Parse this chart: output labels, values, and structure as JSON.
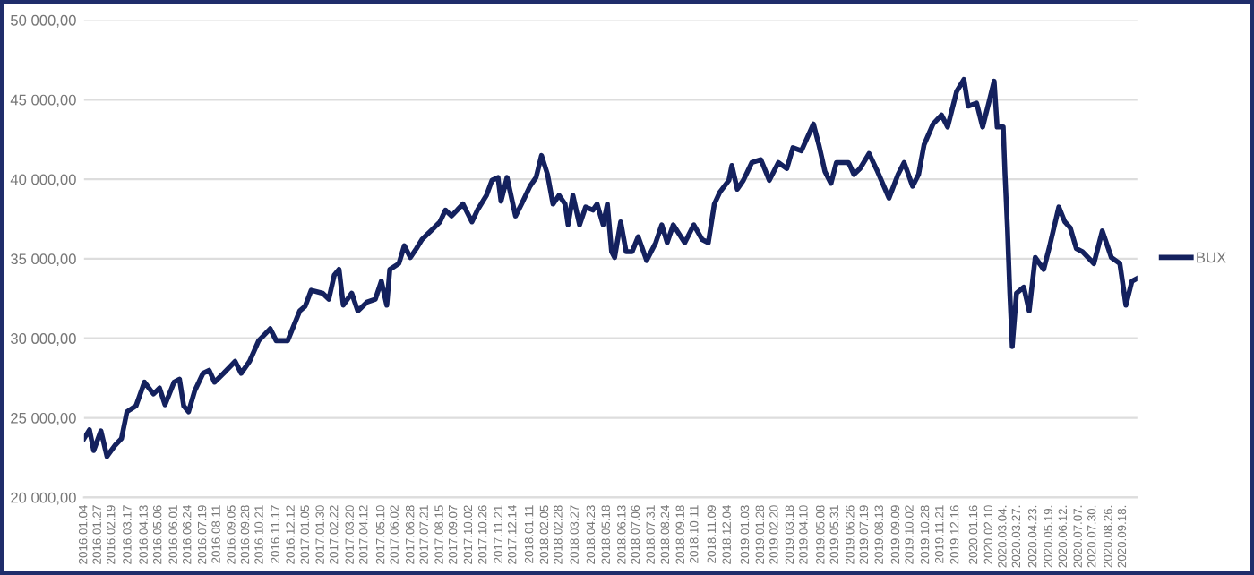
{
  "chart_data": {
    "type": "line",
    "x": [
      "2016-01-04",
      "2016-01-13",
      "2016-01-20",
      "2016-02-01",
      "2016-02-11",
      "2016-02-25",
      "2016-03-06",
      "2016-03-15",
      "2016-03-30",
      "2016-04-13",
      "2016-04-28",
      "2016-05-08",
      "2016-05-17",
      "2016-06-01",
      "2016-06-10",
      "2016-06-17",
      "2016-06-25",
      "2016-07-05",
      "2016-07-19",
      "2016-07-29",
      "2016-08-07",
      "2016-08-22",
      "2016-09-10",
      "2016-09-20",
      "2016-10-04",
      "2016-10-19",
      "2016-11-07",
      "2016-11-17",
      "2016-12-06",
      "2016-12-26",
      "2017-01-04",
      "2017-01-14",
      "2017-02-02",
      "2017-02-12",
      "2017-02-21",
      "2017-03-01",
      "2017-03-08",
      "2017-03-22",
      "2017-04-01",
      "2017-04-16",
      "2017-04-30",
      "2017-05-10",
      "2017-05-19",
      "2017-05-24",
      "2017-06-08",
      "2017-06-17",
      "2017-06-27",
      "2017-07-07",
      "2017-07-16",
      "2017-08-05",
      "2017-08-15",
      "2017-08-24",
      "2017-09-03",
      "2017-09-22",
      "2017-10-07",
      "2017-10-16",
      "2017-10-31",
      "2017-11-09",
      "2017-11-19",
      "2017-11-24",
      "2017-12-04",
      "2017-12-18",
      "2017-12-28",
      "2018-01-11",
      "2018-01-21",
      "2018-01-30",
      "2018-02-09",
      "2018-02-18",
      "2018-02-28",
      "2018-03-10",
      "2018-03-15",
      "2018-03-23",
      "2018-04-03",
      "2018-04-13",
      "2018-04-25",
      "2018-05-02",
      "2018-05-12",
      "2018-05-19",
      "2018-05-26",
      "2018-05-31",
      "2018-06-10",
      "2018-06-19",
      "2018-06-29",
      "2018-07-09",
      "2018-07-23",
      "2018-08-07",
      "2018-08-17",
      "2018-08-26",
      "2018-09-05",
      "2018-09-24",
      "2018-10-09",
      "2018-10-23",
      "2018-11-02",
      "2018-11-12",
      "2018-11-21",
      "2018-12-06",
      "2018-12-11",
      "2018-12-20",
      "2018-12-30",
      "2019-01-13",
      "2019-01-28",
      "2019-02-11",
      "2019-02-26",
      "2019-03-12",
      "2019-03-22",
      "2019-04-05",
      "2019-04-25",
      "2019-05-04",
      "2019-05-14",
      "2019-05-24",
      "2019-06-02",
      "2019-06-22",
      "2019-07-01",
      "2019-07-11",
      "2019-07-26",
      "2019-08-09",
      "2019-08-28",
      "2019-09-12",
      "2019-09-22",
      "2019-10-06",
      "2019-10-16",
      "2019-10-25",
      "2019-11-09",
      "2019-11-23",
      "2019-12-03",
      "2019-12-18",
      "2019-12-30",
      "2020-01-06",
      "2020-01-20",
      "2020-01-30",
      "2020-02-09",
      "2020-02-18",
      "2020-02-23",
      "2020-03-04",
      "2020-03-07",
      "2020-03-11",
      "2020-03-15",
      "2020-03-19",
      "2020-03-26",
      "2020-04-07",
      "2020-04-16",
      "2020-04-26",
      "2020-05-10",
      "2020-05-20",
      "2020-06-04",
      "2020-06-14",
      "2020-06-23",
      "2020-07-03",
      "2020-07-13",
      "2020-08-01",
      "2020-08-15",
      "2020-08-30",
      "2020-09-13",
      "2020-09-23",
      "2020-10-03",
      "2020-10-12"
    ],
    "series": [
      {
        "name": "BUX",
        "color": "#14215e",
        "values": [
          23700,
          24250,
          22950,
          24180,
          22580,
          23300,
          23700,
          25380,
          25750,
          27240,
          26500,
          26870,
          25820,
          27240,
          27430,
          25750,
          25380,
          26680,
          27800,
          27990,
          27240,
          27800,
          28550,
          27800,
          28550,
          29850,
          30600,
          29850,
          29850,
          31720,
          32020,
          33020,
          32830,
          32460,
          33960,
          34330,
          32080,
          32830,
          31720,
          32270,
          32460,
          33590,
          32080,
          34330,
          34700,
          35820,
          35080,
          35640,
          36200,
          36940,
          37320,
          38060,
          37690,
          38440,
          37320,
          38060,
          38990,
          39930,
          40110,
          38620,
          40110,
          37690,
          38440,
          39560,
          40110,
          41490,
          40300,
          38440,
          38990,
          38440,
          37130,
          38990,
          37130,
          38250,
          38060,
          38440,
          37130,
          38440,
          35450,
          35080,
          37320,
          35450,
          35450,
          36380,
          34890,
          36010,
          37130,
          36010,
          37130,
          36010,
          37130,
          36200,
          36010,
          38440,
          39180,
          39930,
          40860,
          39370,
          39930,
          41050,
          41230,
          39930,
          41050,
          40670,
          41980,
          41790,
          43470,
          42160,
          40490,
          39740,
          41050,
          41050,
          40300,
          40670,
          41610,
          40490,
          38810,
          40300,
          41050,
          39560,
          40300,
          42160,
          43470,
          44030,
          43280,
          45520,
          46270,
          44590,
          44780,
          43280,
          44780,
          46160,
          43280,
          43280,
          40300,
          36940,
          32830,
          29480,
          32830,
          33210,
          31720,
          35080,
          34330,
          35820,
          38250,
          37320,
          36940,
          35640,
          35450,
          34700,
          36750,
          35080,
          34700,
          32080,
          33590,
          33770
        ]
      }
    ],
    "xlim": [
      "2016-01-04",
      "2020-10-12"
    ],
    "xticks": [
      {
        "value": "2016-01-04",
        "label": "2016.01.04"
      },
      {
        "value": "2016-01-27",
        "label": "2016.01.27"
      },
      {
        "value": "2016-02-19",
        "label": "2016.02.19"
      },
      {
        "value": "2016-03-17",
        "label": "2016.03.17"
      },
      {
        "value": "2016-04-13",
        "label": "2016.04.13"
      },
      {
        "value": "2016-05-06",
        "label": "2016.05.06"
      },
      {
        "value": "2016-06-01",
        "label": "2016.06.01"
      },
      {
        "value": "2016-06-24",
        "label": "2016.06.24"
      },
      {
        "value": "2016-07-19",
        "label": "2016.07.19"
      },
      {
        "value": "2016-08-11",
        "label": "2016.08.11"
      },
      {
        "value": "2016-09-05",
        "label": "2016.09.05"
      },
      {
        "value": "2016-09-28",
        "label": "2016.09.28"
      },
      {
        "value": "2016-10-21",
        "label": "2016.10.21"
      },
      {
        "value": "2016-11-17",
        "label": "2016.11.17"
      },
      {
        "value": "2016-12-12",
        "label": "2016.12.12"
      },
      {
        "value": "2017-01-05",
        "label": "2017.01.05"
      },
      {
        "value": "2017-01-30",
        "label": "2017.01.30"
      },
      {
        "value": "2017-02-22",
        "label": "2017.02.22"
      },
      {
        "value": "2017-03-20",
        "label": "2017.03.20"
      },
      {
        "value": "2017-04-12",
        "label": "2017.04.12"
      },
      {
        "value": "2017-05-10",
        "label": "2017.05.10"
      },
      {
        "value": "2017-06-02",
        "label": "2017.06.02"
      },
      {
        "value": "2017-06-28",
        "label": "2017.06.28"
      },
      {
        "value": "2017-07-21",
        "label": "2017.07.21"
      },
      {
        "value": "2017-08-15",
        "label": "2017.08.15"
      },
      {
        "value": "2017-09-07",
        "label": "2017.09.07"
      },
      {
        "value": "2017-10-02",
        "label": "2017.10.02"
      },
      {
        "value": "2017-10-26",
        "label": "2017.10.26"
      },
      {
        "value": "2017-11-21",
        "label": "2017.11.21"
      },
      {
        "value": "2017-12-14",
        "label": "2017.12.14"
      },
      {
        "value": "2018-01-11",
        "label": "2018.01.11"
      },
      {
        "value": "2018-02-05",
        "label": "2018.02.05"
      },
      {
        "value": "2018-02-28",
        "label": "2018.02.28"
      },
      {
        "value": "2018-03-27",
        "label": "2018.03.27"
      },
      {
        "value": "2018-04-23",
        "label": "2018.04.23"
      },
      {
        "value": "2018-05-18",
        "label": "2018.05.18"
      },
      {
        "value": "2018-06-13",
        "label": "2018.06.13"
      },
      {
        "value": "2018-07-06",
        "label": "2018.07.06"
      },
      {
        "value": "2018-07-31",
        "label": "2018.07.31"
      },
      {
        "value": "2018-08-24",
        "label": "2018.08.24"
      },
      {
        "value": "2018-09-18",
        "label": "2018.09.18"
      },
      {
        "value": "2018-10-11",
        "label": "2018.10.11"
      },
      {
        "value": "2018-11-09",
        "label": "2018.11.09"
      },
      {
        "value": "2018-12-04",
        "label": "2018.12.04"
      },
      {
        "value": "2019-01-03",
        "label": "2019.01.03"
      },
      {
        "value": "2019-01-28",
        "label": "2019.01.28"
      },
      {
        "value": "2019-02-20",
        "label": "2019.02.20"
      },
      {
        "value": "2019-03-18",
        "label": "2019.03.18"
      },
      {
        "value": "2019-04-10",
        "label": "2019.04.10"
      },
      {
        "value": "2019-05-08",
        "label": "2019.05.08"
      },
      {
        "value": "2019-05-31",
        "label": "2019.05.31"
      },
      {
        "value": "2019-06-26",
        "label": "2019.06.26"
      },
      {
        "value": "2019-07-19",
        "label": "2019.07.19"
      },
      {
        "value": "2019-08-13",
        "label": "2019.08.13"
      },
      {
        "value": "2019-09-09",
        "label": "2019.09.09"
      },
      {
        "value": "2019-10-02",
        "label": "2019.10.02"
      },
      {
        "value": "2019-10-28",
        "label": "2019.10.28"
      },
      {
        "value": "2019-11-21",
        "label": "2019.11.21"
      },
      {
        "value": "2019-12-16",
        "label": "2019.12.16"
      },
      {
        "value": "2020-01-16",
        "label": "2020.01.16"
      },
      {
        "value": "2020-02-10",
        "label": "2020.02.10"
      },
      {
        "value": "2020-03-04",
        "label": "2020.03.04."
      },
      {
        "value": "2020-03-27",
        "label": "2020.03.27."
      },
      {
        "value": "2020-04-23",
        "label": "2020.04.23."
      },
      {
        "value": "2020-05-19",
        "label": "2020.05.19."
      },
      {
        "value": "2020-06-12",
        "label": "2020.06.12."
      },
      {
        "value": "2020-07-07",
        "label": "2020.07.07."
      },
      {
        "value": "2020-07-30",
        "label": "2020.07.30."
      },
      {
        "value": "2020-08-26",
        "label": "2020.08.26."
      },
      {
        "value": "2020-09-18",
        "label": "2020.09.18."
      }
    ],
    "ylim": [
      20000,
      50000
    ],
    "yticks": [
      {
        "value": 20000,
        "label": "20 000,00"
      },
      {
        "value": 25000,
        "label": "25 000,00"
      },
      {
        "value": 30000,
        "label": "30 000,00"
      },
      {
        "value": 35000,
        "label": "35 000,00"
      },
      {
        "value": 40000,
        "label": "40 000,00"
      },
      {
        "value": 45000,
        "label": "45 000,00"
      },
      {
        "value": 50000,
        "label": "50 000,00"
      }
    ],
    "grid": "y",
    "legend": "right",
    "marker": "none",
    "line_style": "solid"
  }
}
